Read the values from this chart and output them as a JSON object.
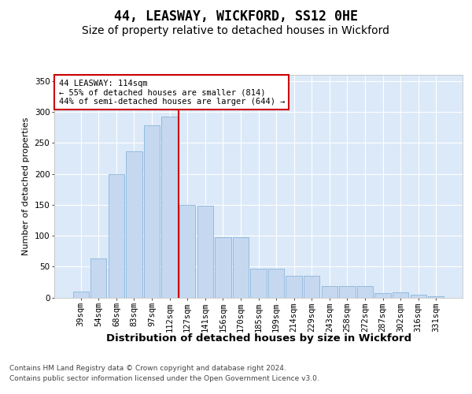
{
  "title1": "44, LEASWAY, WICKFORD, SS12 0HE",
  "title2": "Size of property relative to detached houses in Wickford",
  "xlabel": "Distribution of detached houses by size in Wickford",
  "ylabel": "Number of detached properties",
  "footer1": "Contains HM Land Registry data © Crown copyright and database right 2024.",
  "footer2": "Contains public sector information licensed under the Open Government Licence v3.0.",
  "categories": [
    "39sqm",
    "54sqm",
    "68sqm",
    "83sqm",
    "97sqm",
    "112sqm",
    "127sqm",
    "141sqm",
    "156sqm",
    "170sqm",
    "185sqm",
    "199sqm",
    "214sqm",
    "229sqm",
    "243sqm",
    "258sqm",
    "272sqm",
    "287sqm",
    "302sqm",
    "316sqm",
    "331sqm"
  ],
  "values": [
    10,
    63,
    200,
    237,
    278,
    292,
    150,
    148,
    97,
    97,
    47,
    47,
    35,
    35,
    18,
    18,
    18,
    7,
    8,
    5,
    2
  ],
  "bar_color": "#c5d8f0",
  "bar_edge_color": "#7aadd4",
  "vline_x": 5.5,
  "vline_color": "#cc0000",
  "annotation_text": "44 LEASWAY: 114sqm\n← 55% of detached houses are smaller (814)\n44% of semi-detached houses are larger (644) →",
  "annotation_box_color": "#ffffff",
  "annotation_box_edge": "#cc0000",
  "ylim": [
    0,
    360
  ],
  "yticks": [
    0,
    50,
    100,
    150,
    200,
    250,
    300,
    350
  ],
  "fig_bg_color": "#ffffff",
  "plot_bg_color": "#dce9f8",
  "grid_color": "#ffffff",
  "title1_fontsize": 12,
  "title2_fontsize": 10,
  "xlabel_fontsize": 9.5,
  "ylabel_fontsize": 8,
  "tick_fontsize": 7.5,
  "footer_fontsize": 6.5
}
